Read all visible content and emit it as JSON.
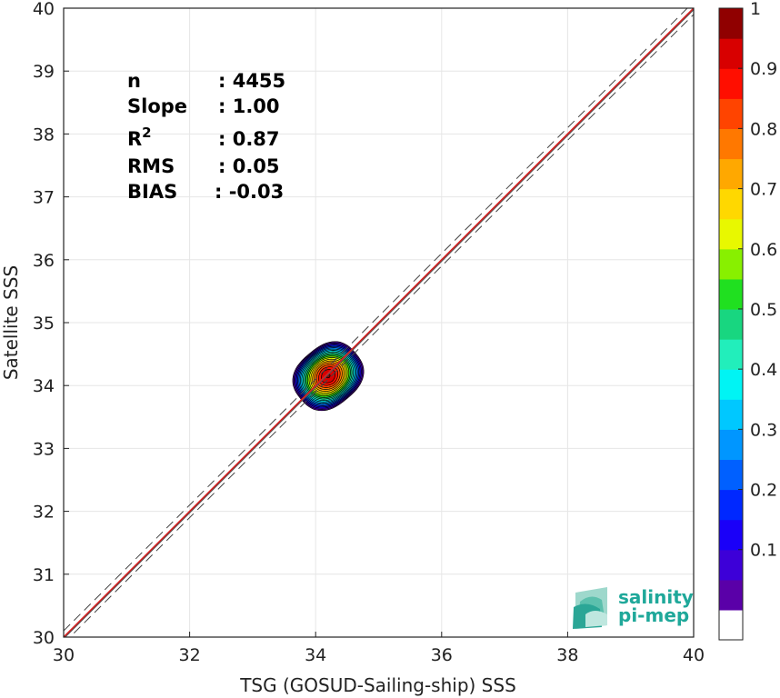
{
  "chart_data": {
    "type": "heatmap",
    "xlabel": "TSG (GOSUD-Sailing-ship) SSS",
    "ylabel": "Satellite SSS",
    "xlim": [
      30,
      40
    ],
    "ylim": [
      30,
      40
    ],
    "x_ticks": [
      30,
      32,
      34,
      36,
      38,
      40
    ],
    "y_ticks": [
      30,
      31,
      32,
      33,
      34,
      35,
      36,
      37,
      38,
      39,
      40
    ],
    "grid": true,
    "reference_lines": {
      "identity": {
        "slope": 1,
        "intercept": 0,
        "color": "#555555"
      },
      "fit": {
        "slope": 1.0,
        "intercept": 0,
        "color": "#d62020"
      },
      "dashed_offsets": [
        -0.1,
        0.1
      ]
    },
    "density_center": {
      "x": 34.2,
      "y": 34.15
    },
    "density_levels": [
      0.05,
      0.1,
      0.15,
      0.2,
      0.25,
      0.3,
      0.35,
      0.4,
      0.45,
      0.5,
      0.55,
      0.6,
      0.65,
      0.7,
      0.75,
      0.8,
      0.85,
      0.9,
      0.95,
      1.0
    ],
    "colorbar": {
      "ticks": [
        "1",
        "0.9",
        "0.8",
        "0.7",
        "0.6",
        "0.5",
        "0.4",
        "0.3",
        "0.2",
        "0.1"
      ],
      "tick_values": [
        1,
        0.9,
        0.8,
        0.7,
        0.6,
        0.5,
        0.4,
        0.3,
        0.2,
        0.1
      ],
      "colors": [
        "#ffffff",
        "#5a00a8",
        "#3d00d8",
        "#1a00f8",
        "#0028ff",
        "#0060ff",
        "#0096ff",
        "#00c8ff",
        "#00f4f4",
        "#22eebb",
        "#18d680",
        "#20e020",
        "#88f000",
        "#e8f800",
        "#ffd800",
        "#ffa800",
        "#ff7800",
        "#ff4400",
        "#ff0e00",
        "#d80000",
        "#900000"
      ]
    },
    "stats": [
      {
        "label": "n",
        "value": ": 4455"
      },
      {
        "label": "Slope",
        "value": ": 1.00"
      },
      {
        "label": "R",
        "sup": "2",
        "value": ": 0.87"
      },
      {
        "label": "RMS",
        "value": ": 0.05"
      },
      {
        "label": "BIAS",
        "value": ": -0.03"
      }
    ]
  },
  "logo": {
    "line1": "salinity",
    "line2": "pi-mep"
  }
}
